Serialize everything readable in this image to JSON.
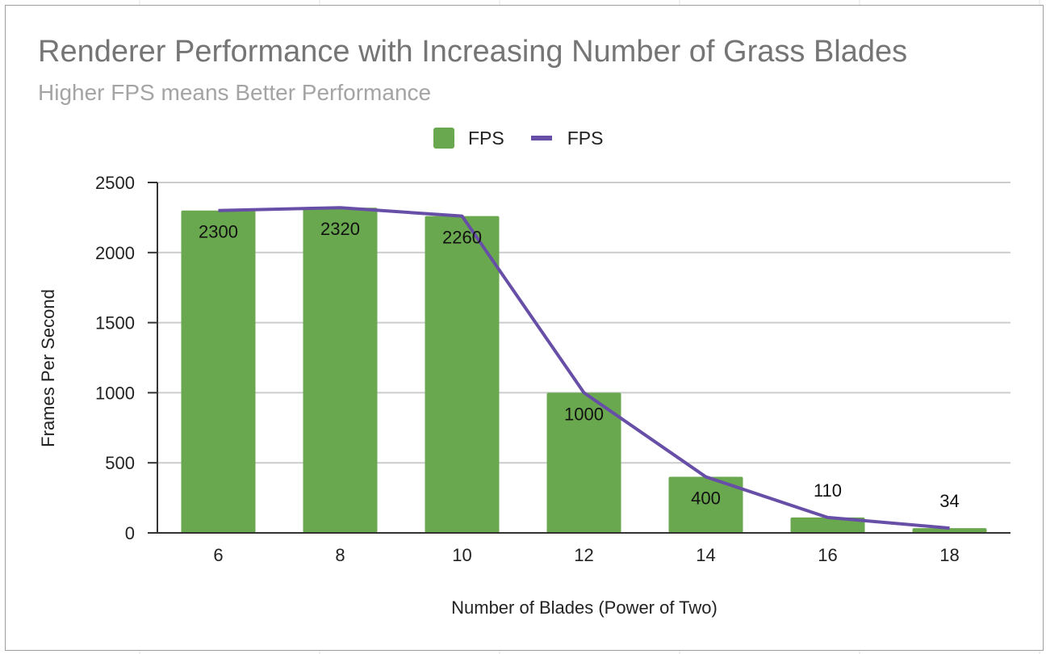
{
  "chart_data": {
    "type": "bar",
    "title": "Renderer Performance with Increasing Number of Grass Blades",
    "subtitle": "Higher FPS means Better Performance",
    "xlabel": "Number of Blades (Power of Two)",
    "ylabel": "Frames Per Second",
    "categories": [
      "6",
      "8",
      "10",
      "12",
      "14",
      "16",
      "18"
    ],
    "ylim": [
      0,
      2500
    ],
    "yticks": [
      0,
      500,
      1000,
      1500,
      2000,
      2500
    ],
    "grid": true,
    "legend_position": "top",
    "series": [
      {
        "name": "FPS",
        "type": "bar",
        "color": "#6aa84f",
        "values": [
          2300,
          2320,
          2260,
          1000,
          400,
          110,
          34
        ],
        "data_labels": [
          "2300",
          "2320",
          "2260",
          "1000",
          "400",
          "110",
          "34"
        ]
      },
      {
        "name": "FPS",
        "type": "line",
        "color": "#674ea7",
        "values": [
          2300,
          2320,
          2260,
          1000,
          400,
          110,
          34
        ]
      }
    ]
  }
}
